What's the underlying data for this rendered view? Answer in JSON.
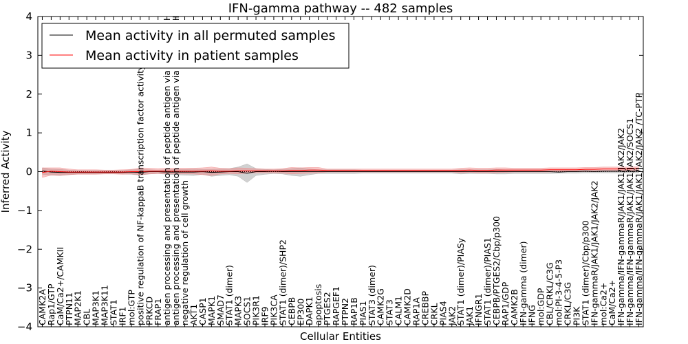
{
  "chart_data": {
    "type": "line",
    "title": "IFN-gamma pathway -- 482 samples",
    "xlabel": "Cellular Entities",
    "ylabel": "Inferred Activity",
    "ylim": [
      -4,
      4
    ],
    "yticks": [
      -4,
      -3,
      -2,
      -1,
      0,
      1,
      2,
      3,
      4
    ],
    "legend_position": "top-left",
    "categories": [
      "CAMK2A",
      "Rap1/GTP",
      "CaM/Ca2+/CAMKII",
      "PTPN11",
      "MAP2K1",
      "CBL",
      "MAP3K1",
      "MAP3K11",
      "STAT1",
      "IRF1",
      "mol:GTP",
      "positive regulation of NF-kappaB transcription factor activity",
      "PRKCD",
      "FRAP1",
      "antigen processing and presentation of peptide antigen via MHC class I",
      "antigen processing and presentation of peptide antigen via MHC class II",
      "negative regulation of cell growth",
      "AKT1",
      "CASP1",
      "MAPK1",
      "SMAD7",
      "STAT1 (dimer)",
      "MAPK3",
      "SOCS1",
      "PIK3R1",
      "IRF9",
      "PIK3CA",
      "STAT1 (dimer)/SHP2",
      "CEBPB",
      "EP300",
      "DAPK1",
      "apoptosis",
      "PTGES2",
      "RAPGEF1",
      "PTPN2",
      "RAP1B",
      "PIAS1",
      "STAT3 (dimer)",
      "CAMK2G",
      "STAT3",
      "CALM1",
      "CAMK2D",
      "RAP1A",
      "CREBBP",
      "CRKL",
      "PIAS4",
      "JAK2",
      "STAT1 (dimer)/PIASy",
      "JAK1",
      "IFNGR1",
      "STAT1 (dimer)/PIAS1",
      "CEBPB/PTGES2/Cbp/p300",
      "RAP1/GDP",
      "CAMK2B",
      "IFN-gamma (dimer)",
      "IFNG",
      "mol:GDP",
      "CBL/CRKL/C3G",
      "mol:PI-3-4-5-P3",
      "CRKL/C3G",
      "PI3K",
      "STAT1 (dimer)/Cbp/p300",
      "IFN-gammaR/JAK1/JAK1/JAK2/JAK2",
      "mol:Ca2+",
      "CaM/Ca2+",
      "IFN-gamma/IFN-gammaR/JAK1/JAK1/JAK2/JAK2",
      "IFN-gamma/IFN-gammaR/JAK1/JAK1/JAK2/SOCS1",
      "IFN-gamma/IFN-gammaR/JAK1/JAK1/JAK2/JAK2 /TC-PTP"
    ],
    "series": [
      {
        "name": "Mean activity in all permuted samples",
        "color": "#000000",
        "band_color": "#999999",
        "values": [
          0.02,
          -0.01,
          -0.02,
          -0.02,
          -0.02,
          -0.02,
          -0.02,
          -0.02,
          -0.02,
          -0.02,
          -0.01,
          -0.02,
          0.0,
          0.0,
          -0.01,
          -0.01,
          -0.01,
          -0.01,
          0.0,
          -0.02,
          -0.01,
          0.0,
          0.0,
          -0.04,
          0.0,
          0.0,
          0.01,
          0.0,
          0.0,
          0.0,
          0.0,
          0.0,
          0.0,
          0.0,
          0.0,
          0.0,
          0.0,
          0.0,
          0.0,
          0.0,
          0.0,
          0.0,
          0.0,
          0.0,
          0.0,
          0.0,
          0.0,
          0.0,
          0.0,
          0.0,
          0.0,
          0.0,
          0.0,
          0.0,
          0.0,
          0.0,
          0.0,
          0.0,
          -0.01,
          0.0,
          0.0,
          0.01,
          0.0,
          0.01,
          0.01,
          0.01,
          0.01,
          0.01
        ],
        "lower": [
          -0.07,
          -0.09,
          -0.1,
          -0.08,
          -0.06,
          -0.06,
          -0.06,
          -0.05,
          -0.05,
          -0.06,
          -0.07,
          -0.09,
          -0.06,
          -0.05,
          -0.07,
          -0.08,
          -0.09,
          -0.1,
          -0.07,
          -0.12,
          -0.1,
          -0.08,
          -0.12,
          -0.28,
          -0.1,
          -0.07,
          -0.05,
          -0.06,
          -0.1,
          -0.12,
          -0.08,
          -0.05,
          -0.05,
          -0.05,
          -0.05,
          -0.05,
          -0.04,
          -0.04,
          -0.04,
          -0.04,
          -0.04,
          -0.04,
          -0.04,
          -0.04,
          -0.04,
          -0.04,
          -0.04,
          -0.06,
          -0.05,
          -0.05,
          -0.05,
          -0.06,
          -0.06,
          -0.05,
          -0.05,
          -0.05,
          -0.05,
          -0.05,
          -0.04,
          -0.04,
          -0.04,
          -0.03,
          -0.03,
          -0.03,
          -0.03,
          -0.03,
          -0.03,
          -0.03
        ],
        "upper": [
          0.1,
          0.07,
          0.06,
          0.04,
          0.03,
          0.03,
          0.03,
          0.03,
          0.03,
          0.03,
          0.05,
          0.06,
          0.05,
          0.04,
          0.05,
          0.06,
          0.06,
          0.07,
          0.06,
          0.06,
          0.07,
          0.08,
          0.12,
          0.2,
          0.08,
          0.06,
          0.05,
          0.06,
          0.08,
          0.1,
          0.07,
          0.05,
          0.05,
          0.05,
          0.05,
          0.05,
          0.04,
          0.04,
          0.04,
          0.04,
          0.04,
          0.04,
          0.04,
          0.04,
          0.04,
          0.04,
          0.04,
          0.05,
          0.05,
          0.05,
          0.05,
          0.06,
          0.05,
          0.05,
          0.05,
          0.05,
          0.05,
          0.05,
          0.04,
          0.04,
          0.04,
          0.04,
          0.04,
          0.04,
          0.04,
          0.04,
          0.04,
          0.04
        ]
      },
      {
        "name": "Mean activity in patient samples",
        "color": "#ff0000",
        "band_color": "#f08080",
        "values": [
          -0.02,
          0.01,
          0.0,
          -0.01,
          -0.01,
          -0.01,
          -0.01,
          -0.01,
          -0.01,
          -0.01,
          0.0,
          0.0,
          0.01,
          0.01,
          0.01,
          0.01,
          0.01,
          0.01,
          0.01,
          0.02,
          0.01,
          0.01,
          0.02,
          0.02,
          0.02,
          0.02,
          0.02,
          0.02,
          0.03,
          0.03,
          0.04,
          0.04,
          0.03,
          0.03,
          0.03,
          0.03,
          0.03,
          0.03,
          0.03,
          0.03,
          0.03,
          0.03,
          0.03,
          0.03,
          0.03,
          0.03,
          0.03,
          0.03,
          0.04,
          0.03,
          0.03,
          0.04,
          0.04,
          0.04,
          0.04,
          0.04,
          0.04,
          0.05,
          0.05,
          0.05,
          0.05,
          0.06,
          0.06,
          0.07,
          0.07,
          0.07,
          0.07,
          0.08
        ],
        "lower": [
          -0.15,
          -0.09,
          -0.1,
          -0.08,
          -0.07,
          -0.07,
          -0.07,
          -0.06,
          -0.06,
          -0.07,
          -0.06,
          -0.08,
          -0.06,
          -0.05,
          -0.06,
          -0.06,
          -0.06,
          -0.06,
          -0.08,
          -0.1,
          -0.06,
          -0.05,
          -0.06,
          -0.04,
          -0.03,
          -0.03,
          -0.03,
          -0.04,
          -0.06,
          -0.05,
          -0.04,
          -0.03,
          -0.01,
          -0.01,
          -0.01,
          -0.01,
          -0.01,
          -0.01,
          -0.01,
          -0.01,
          -0.01,
          -0.01,
          -0.01,
          -0.01,
          -0.01,
          -0.01,
          -0.01,
          -0.03,
          -0.02,
          -0.03,
          -0.03,
          -0.03,
          -0.02,
          -0.01,
          -0.01,
          -0.01,
          -0.01,
          -0.01,
          0.0,
          0.0,
          0.0,
          0.0,
          0.0,
          0.01,
          0.01,
          0.01,
          0.01,
          0.02
        ],
        "upper": [
          0.1,
          0.1,
          0.1,
          0.07,
          0.05,
          0.05,
          0.05,
          0.04,
          0.04,
          0.05,
          0.06,
          0.1,
          0.09,
          0.08,
          0.09,
          0.09,
          0.09,
          0.09,
          0.1,
          0.12,
          0.09,
          0.08,
          0.1,
          0.09,
          0.08,
          0.07,
          0.07,
          0.08,
          0.11,
          0.1,
          0.11,
          0.11,
          0.07,
          0.07,
          0.07,
          0.07,
          0.07,
          0.07,
          0.07,
          0.07,
          0.07,
          0.07,
          0.07,
          0.07,
          0.07,
          0.07,
          0.07,
          0.09,
          0.1,
          0.09,
          0.09,
          0.1,
          0.1,
          0.09,
          0.09,
          0.09,
          0.09,
          0.1,
          0.1,
          0.1,
          0.1,
          0.11,
          0.11,
          0.12,
          0.12,
          0.12,
          0.12,
          0.13
        ]
      }
    ]
  }
}
